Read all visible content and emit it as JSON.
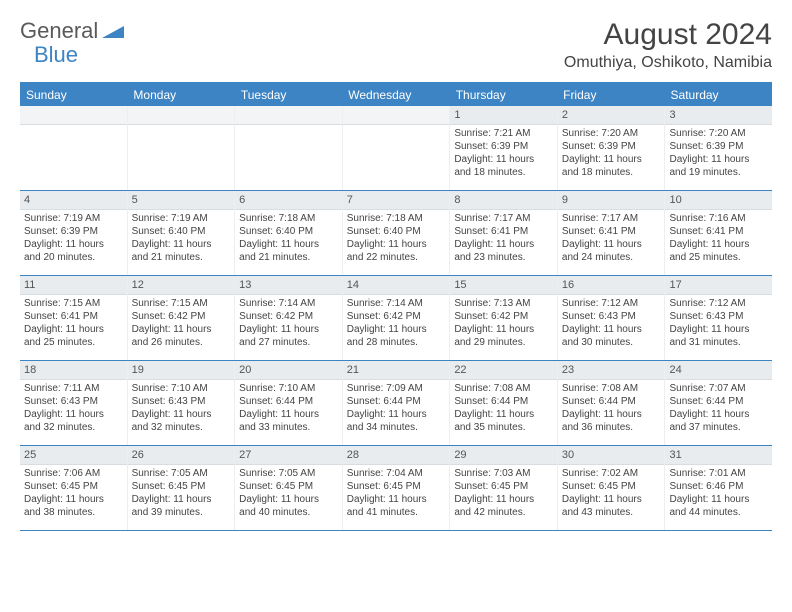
{
  "logo": {
    "text1": "General",
    "text2": "Blue"
  },
  "title": "August 2024",
  "location": "Omuthiya, Oshikoto, Namibia",
  "colors": {
    "header_bg": "#3d84c4",
    "header_text": "#ffffff",
    "daynum_bg": "#e9ecef",
    "border": "#3d84c4",
    "body_text": "#444444"
  },
  "weekdays": [
    "Sunday",
    "Monday",
    "Tuesday",
    "Wednesday",
    "Thursday",
    "Friday",
    "Saturday"
  ],
  "weeks": [
    [
      {
        "empty": true
      },
      {
        "empty": true
      },
      {
        "empty": true
      },
      {
        "empty": true
      },
      {
        "day": "1",
        "sunrise": "Sunrise: 7:21 AM",
        "sunset": "Sunset: 6:39 PM",
        "daylight": "Daylight: 11 hours and 18 minutes."
      },
      {
        "day": "2",
        "sunrise": "Sunrise: 7:20 AM",
        "sunset": "Sunset: 6:39 PM",
        "daylight": "Daylight: 11 hours and 18 minutes."
      },
      {
        "day": "3",
        "sunrise": "Sunrise: 7:20 AM",
        "sunset": "Sunset: 6:39 PM",
        "daylight": "Daylight: 11 hours and 19 minutes."
      }
    ],
    [
      {
        "day": "4",
        "sunrise": "Sunrise: 7:19 AM",
        "sunset": "Sunset: 6:39 PM",
        "daylight": "Daylight: 11 hours and 20 minutes."
      },
      {
        "day": "5",
        "sunrise": "Sunrise: 7:19 AM",
        "sunset": "Sunset: 6:40 PM",
        "daylight": "Daylight: 11 hours and 21 minutes."
      },
      {
        "day": "6",
        "sunrise": "Sunrise: 7:18 AM",
        "sunset": "Sunset: 6:40 PM",
        "daylight": "Daylight: 11 hours and 21 minutes."
      },
      {
        "day": "7",
        "sunrise": "Sunrise: 7:18 AM",
        "sunset": "Sunset: 6:40 PM",
        "daylight": "Daylight: 11 hours and 22 minutes."
      },
      {
        "day": "8",
        "sunrise": "Sunrise: 7:17 AM",
        "sunset": "Sunset: 6:41 PM",
        "daylight": "Daylight: 11 hours and 23 minutes."
      },
      {
        "day": "9",
        "sunrise": "Sunrise: 7:17 AM",
        "sunset": "Sunset: 6:41 PM",
        "daylight": "Daylight: 11 hours and 24 minutes."
      },
      {
        "day": "10",
        "sunrise": "Sunrise: 7:16 AM",
        "sunset": "Sunset: 6:41 PM",
        "daylight": "Daylight: 11 hours and 25 minutes."
      }
    ],
    [
      {
        "day": "11",
        "sunrise": "Sunrise: 7:15 AM",
        "sunset": "Sunset: 6:41 PM",
        "daylight": "Daylight: 11 hours and 25 minutes."
      },
      {
        "day": "12",
        "sunrise": "Sunrise: 7:15 AM",
        "sunset": "Sunset: 6:42 PM",
        "daylight": "Daylight: 11 hours and 26 minutes."
      },
      {
        "day": "13",
        "sunrise": "Sunrise: 7:14 AM",
        "sunset": "Sunset: 6:42 PM",
        "daylight": "Daylight: 11 hours and 27 minutes."
      },
      {
        "day": "14",
        "sunrise": "Sunrise: 7:14 AM",
        "sunset": "Sunset: 6:42 PM",
        "daylight": "Daylight: 11 hours and 28 minutes."
      },
      {
        "day": "15",
        "sunrise": "Sunrise: 7:13 AM",
        "sunset": "Sunset: 6:42 PM",
        "daylight": "Daylight: 11 hours and 29 minutes."
      },
      {
        "day": "16",
        "sunrise": "Sunrise: 7:12 AM",
        "sunset": "Sunset: 6:43 PM",
        "daylight": "Daylight: 11 hours and 30 minutes."
      },
      {
        "day": "17",
        "sunrise": "Sunrise: 7:12 AM",
        "sunset": "Sunset: 6:43 PM",
        "daylight": "Daylight: 11 hours and 31 minutes."
      }
    ],
    [
      {
        "day": "18",
        "sunrise": "Sunrise: 7:11 AM",
        "sunset": "Sunset: 6:43 PM",
        "daylight": "Daylight: 11 hours and 32 minutes."
      },
      {
        "day": "19",
        "sunrise": "Sunrise: 7:10 AM",
        "sunset": "Sunset: 6:43 PM",
        "daylight": "Daylight: 11 hours and 32 minutes."
      },
      {
        "day": "20",
        "sunrise": "Sunrise: 7:10 AM",
        "sunset": "Sunset: 6:44 PM",
        "daylight": "Daylight: 11 hours and 33 minutes."
      },
      {
        "day": "21",
        "sunrise": "Sunrise: 7:09 AM",
        "sunset": "Sunset: 6:44 PM",
        "daylight": "Daylight: 11 hours and 34 minutes."
      },
      {
        "day": "22",
        "sunrise": "Sunrise: 7:08 AM",
        "sunset": "Sunset: 6:44 PM",
        "daylight": "Daylight: 11 hours and 35 minutes."
      },
      {
        "day": "23",
        "sunrise": "Sunrise: 7:08 AM",
        "sunset": "Sunset: 6:44 PM",
        "daylight": "Daylight: 11 hours and 36 minutes."
      },
      {
        "day": "24",
        "sunrise": "Sunrise: 7:07 AM",
        "sunset": "Sunset: 6:44 PM",
        "daylight": "Daylight: 11 hours and 37 minutes."
      }
    ],
    [
      {
        "day": "25",
        "sunrise": "Sunrise: 7:06 AM",
        "sunset": "Sunset: 6:45 PM",
        "daylight": "Daylight: 11 hours and 38 minutes."
      },
      {
        "day": "26",
        "sunrise": "Sunrise: 7:05 AM",
        "sunset": "Sunset: 6:45 PM",
        "daylight": "Daylight: 11 hours and 39 minutes."
      },
      {
        "day": "27",
        "sunrise": "Sunrise: 7:05 AM",
        "sunset": "Sunset: 6:45 PM",
        "daylight": "Daylight: 11 hours and 40 minutes."
      },
      {
        "day": "28",
        "sunrise": "Sunrise: 7:04 AM",
        "sunset": "Sunset: 6:45 PM",
        "daylight": "Daylight: 11 hours and 41 minutes."
      },
      {
        "day": "29",
        "sunrise": "Sunrise: 7:03 AM",
        "sunset": "Sunset: 6:45 PM",
        "daylight": "Daylight: 11 hours and 42 minutes."
      },
      {
        "day": "30",
        "sunrise": "Sunrise: 7:02 AM",
        "sunset": "Sunset: 6:45 PM",
        "daylight": "Daylight: 11 hours and 43 minutes."
      },
      {
        "day": "31",
        "sunrise": "Sunrise: 7:01 AM",
        "sunset": "Sunset: 6:46 PM",
        "daylight": "Daylight: 11 hours and 44 minutes."
      }
    ]
  ]
}
